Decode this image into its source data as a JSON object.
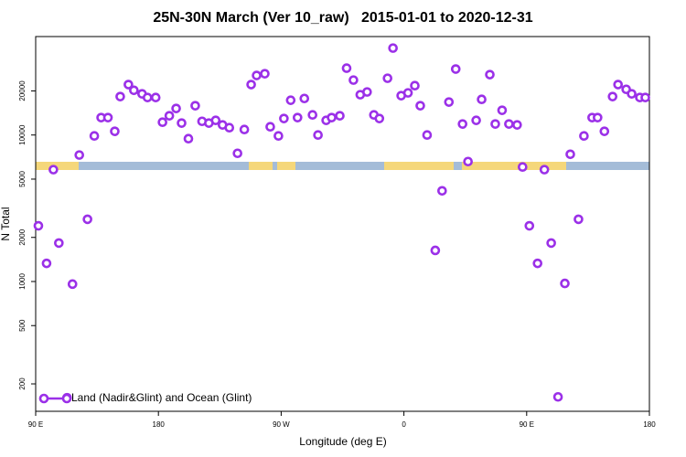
{
  "chart_data": {
    "type": "scatter",
    "title": "25N-30N March (Ver 10_raw)   2015-01-01 to 2020-12-31",
    "xlabel": "Longitude (deg E)",
    "ylabel": "N Total",
    "x": [
      92,
      98,
      103,
      107,
      113,
      117,
      122,
      128,
      133,
      138,
      143,
      148,
      152,
      158,
      162,
      168,
      172,
      178,
      183,
      188,
      193,
      197,
      202,
      207,
      212,
      217,
      222,
      227,
      232,
      238,
      243,
      248,
      252,
      258,
      262,
      268,
      272,
      277,
      282,
      287,
      293,
      297,
      303,
      307,
      313,
      318,
      323,
      328,
      333,
      338,
      342,
      348,
      352,
      358,
      363,
      368,
      372,
      377,
      383,
      388,
      393,
      398,
      403,
      407,
      413,
      417,
      423,
      427,
      432,
      437,
      443,
      447,
      452,
      458,
      463,
      468,
      473,
      478,
      482,
      488,
      492,
      498,
      502,
      507,
      513,
      517,
      523,
      527,
      533,
      537
    ],
    "series": [
      {
        "name": "Land (Nadir&Glint) and Ocean (Glint)",
        "color": "#9b30e8",
        "values": [
          2400,
          1330,
          5800,
          1830,
          161,
          960,
          7300,
          2660,
          9860,
          13150,
          13150,
          10600,
          18300,
          22100,
          20200,
          19100,
          18030,
          18030,
          12230,
          13530,
          15180,
          12060,
          9440,
          15850,
          12400,
          12060,
          12590,
          11720,
          11220,
          7500,
          10900,
          22100,
          25500,
          26200,
          11380,
          9860,
          12960,
          17270,
          13150,
          17760,
          13720,
          10000,
          12590,
          13150,
          13530,
          28600,
          23710,
          18840,
          19670,
          13720,
          12960,
          24400,
          39200,
          18560,
          19390,
          21730,
          15850,
          10000,
          1630,
          4160,
          16790,
          28200,
          11890,
          6590,
          12590,
          17510,
          25840,
          11890,
          14750,
          11890,
          11720,
          6050,
          2400,
          1330,
          5800,
          1830,
          163,
          970,
          7390,
          2660,
          9860,
          13150,
          13150,
          10600,
          18300,
          22100,
          20500,
          19100,
          18030,
          18030
        ]
      }
    ],
    "xlim": [
      90,
      540
    ],
    "xticks": [
      {
        "value": 90,
        "label": "90 E"
      },
      180,
      {
        "value": 270,
        "label": "90 W"
      },
      {
        "value": 360,
        "label": "0"
      },
      {
        "value": 450,
        "label": "90 E"
      },
      {
        "value": 540,
        "label": "180"
      }
    ],
    "ylim": [
      130,
      47000
    ],
    "yticks": [
      200,
      500,
      1000,
      2000,
      5000,
      10000,
      20000
    ],
    "ylog": true,
    "legend": "lower left"
  }
}
